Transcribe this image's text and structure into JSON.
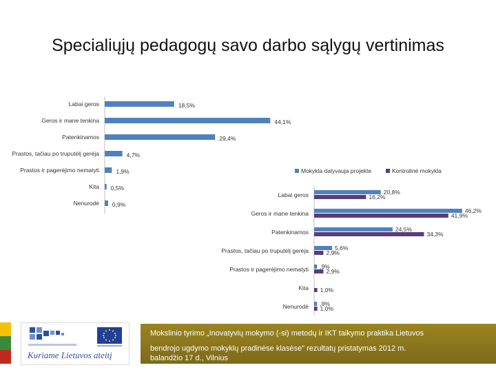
{
  "slide": {
    "title": "Specialiųjų pedagogų savo darbo sąlygų vertinimas"
  },
  "chart_data": [
    {
      "type": "bar",
      "orientation": "horizontal",
      "categories": [
        "Labai geros",
        "Geros ir mane tenkina",
        "Patenkinamos",
        "Prastos, tačiau po truputėlį gerėja",
        "Prastos ir pagerėjimo nematyti",
        "Kita",
        "Nenurodė"
      ],
      "series": [
        {
          "values": [
            18.5,
            44.1,
            29.4,
            4.7,
            1.9,
            0.5,
            0.9
          ],
          "labels": [
            "18,5%",
            "44,1%",
            "29,4%",
            "4,7%",
            "1,9%",
            "0,5%",
            "0,9%"
          ],
          "color": "#4f81bd"
        }
      ]
    },
    {
      "type": "bar",
      "orientation": "horizontal",
      "categories": [
        "Labai geros",
        "Geros ir mane tenkina",
        "Patenkinamos",
        "Prastos, tačiau po truputėlį gerėja",
        "Prastos ir pagerėjimo nematyti",
        "Kita",
        "Nenurodė"
      ],
      "legend": {
        "position": "top"
      },
      "series": [
        {
          "name": "Mokykla dalyvauja projekte",
          "values": [
            20.8,
            46.2,
            24.5,
            5.6,
            0.9,
            0,
            0.9
          ],
          "labels": [
            "20,8%",
            "46,2%",
            "24,5%",
            "5,6%",
            ",9%",
            "",
            ",9%"
          ],
          "color": "#4f81bd"
        },
        {
          "name": "Kontrolinė mokykla",
          "values": [
            16.2,
            41.9,
            34.3,
            2.9,
            2.9,
            1.0,
            1.0
          ],
          "labels": [
            "16,2%",
            "41,9%",
            "34,3%",
            "2,9%",
            "2,9%",
            "1,0%",
            "1,0%"
          ],
          "color": "#5b3c7a"
        }
      ]
    }
  ],
  "footer": {
    "logo_text": "Kuriame Lietuvos ateitį",
    "project_line1": "Mokslinio tyrimo „Inovatyvių mokymo (-si) metodų ir IKT taikymo praktika Lietuvos",
    "project_line2": "bendrojo ugdymo mokyklų pradinėse klasėse\" rezultatų pristatymas  2012 m.",
    "project_line3": "balandžio 17 d., Vilnius",
    "stripe_colors": [
      "#f2c200",
      "#3a8a3a",
      "#c0281f"
    ]
  }
}
